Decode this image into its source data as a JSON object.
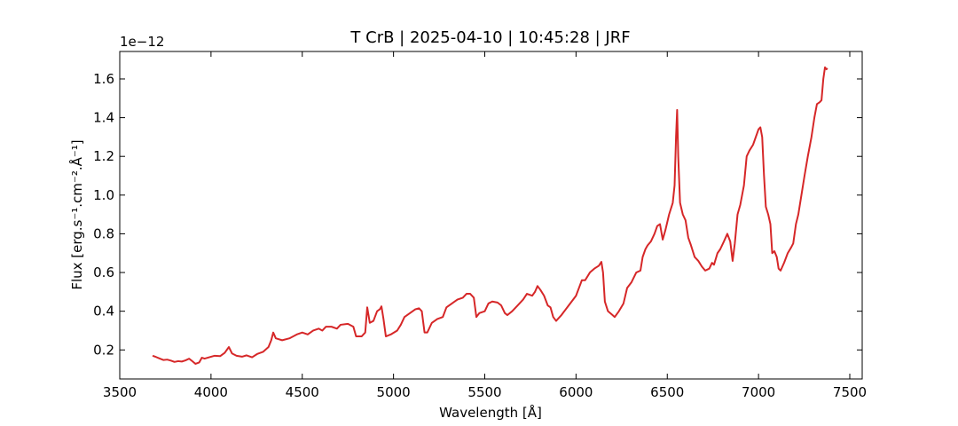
{
  "chart_data": {
    "type": "line",
    "title": "T CrB | 2025-04-10 | 10:45:28 | JRF",
    "xlabel": "Wavelength [Å]",
    "ylabel": "Flux [erg.s⁻¹.cm⁻².Å⁻¹]",
    "y_offset_label": "1e−12",
    "color": "#d62728",
    "xlim": [
      3500,
      7568
    ],
    "ylim": [
      0.05,
      1.742
    ],
    "xticks": [
      3500,
      4000,
      4500,
      5000,
      5500,
      6000,
      6500,
      7000,
      7500
    ],
    "yticks": [
      0.2,
      0.4,
      0.6,
      0.8,
      {
        "value": 1,
        "label": "1.0"
      },
      1.2,
      1.4,
      1.6
    ],
    "x": [
      3680,
      3700,
      3720,
      3740,
      3760,
      3780,
      3800,
      3820,
      3840,
      3860,
      3880,
      3900,
      3915,
      3935,
      3950,
      3965,
      3990,
      4020,
      4050,
      4075,
      4098,
      4115,
      4140,
      4170,
      4195,
      4225,
      4255,
      4285,
      4315,
      4330,
      4341,
      4355,
      4390,
      4430,
      4470,
      4500,
      4530,
      4560,
      4590,
      4610,
      4630,
      4660,
      4690,
      4710,
      4750,
      4780,
      4795,
      4825,
      4845,
      4856,
      4870,
      4890,
      4910,
      4925,
      4934,
      4945,
      4958,
      4985,
      5020,
      5040,
      5060,
      5090,
      5120,
      5140,
      5155,
      5170,
      5185,
      5210,
      5240,
      5270,
      5290,
      5320,
      5350,
      5380,
      5400,
      5420,
      5440,
      5454,
      5470,
      5500,
      5520,
      5541,
      5570,
      5590,
      5610,
      5624,
      5650,
      5680,
      5710,
      5731,
      5760,
      5775,
      5789,
      5805,
      5825,
      5845,
      5860,
      5875,
      5891,
      5920,
      5960,
      6000,
      6020,
      6032,
      6050,
      6076,
      6100,
      6125,
      6139,
      6148,
      6158,
      6175,
      6200,
      6212,
      6235,
      6260,
      6280,
      6304,
      6330,
      6353,
      6365,
      6380,
      6392,
      6410,
      6430,
      6445,
      6460,
      6475,
      6490,
      6510,
      6530,
      6540,
      6548,
      6554,
      6560,
      6570,
      6585,
      6600,
      6615,
      6630,
      6650,
      6670,
      6690,
      6708,
      6730,
      6745,
      6756,
      6775,
      6790,
      6810,
      6829,
      6845,
      6858,
      6870,
      6885,
      6900,
      6920,
      6935,
      6950,
      6970,
      6985,
      7000,
      7010,
      7020,
      7030,
      7040,
      7053,
      7065,
      7075,
      7087,
      7100,
      7110,
      7121,
      7140,
      7160,
      7179,
      7190,
      7205,
      7218,
      7235,
      7252,
      7270,
      7290,
      7306,
      7320,
      7335,
      7345,
      7355,
      7364,
      7372,
      7378
    ],
    "values": [
      0.17,
      0.163,
      0.155,
      0.148,
      0.15,
      0.145,
      0.138,
      0.142,
      0.14,
      0.146,
      0.155,
      0.14,
      0.128,
      0.135,
      0.16,
      0.155,
      0.162,
      0.17,
      0.168,
      0.185,
      0.215,
      0.182,
      0.17,
      0.165,
      0.172,
      0.162,
      0.18,
      0.19,
      0.215,
      0.25,
      0.29,
      0.26,
      0.25,
      0.26,
      0.28,
      0.29,
      0.28,
      0.3,
      0.31,
      0.3,
      0.32,
      0.32,
      0.31,
      0.33,
      0.335,
      0.32,
      0.27,
      0.27,
      0.29,
      0.42,
      0.34,
      0.35,
      0.4,
      0.41,
      0.425,
      0.36,
      0.27,
      0.28,
      0.3,
      0.33,
      0.37,
      0.39,
      0.41,
      0.415,
      0.4,
      0.29,
      0.29,
      0.34,
      0.36,
      0.37,
      0.42,
      0.44,
      0.46,
      0.47,
      0.49,
      0.49,
      0.47,
      0.37,
      0.39,
      0.4,
      0.44,
      0.45,
      0.445,
      0.43,
      0.39,
      0.38,
      0.4,
      0.43,
      0.46,
      0.49,
      0.48,
      0.5,
      0.53,
      0.51,
      0.48,
      0.43,
      0.42,
      0.37,
      0.35,
      0.38,
      0.43,
      0.48,
      0.53,
      0.56,
      0.56,
      0.6,
      0.62,
      0.635,
      0.655,
      0.6,
      0.45,
      0.4,
      0.38,
      0.37,
      0.4,
      0.44,
      0.52,
      0.55,
      0.6,
      0.61,
      0.68,
      0.72,
      0.74,
      0.76,
      0.8,
      0.84,
      0.85,
      0.77,
      0.82,
      0.9,
      0.96,
      1.05,
      1.3,
      1.44,
      1.2,
      0.96,
      0.9,
      0.87,
      0.78,
      0.74,
      0.68,
      0.66,
      0.63,
      0.61,
      0.62,
      0.65,
      0.64,
      0.7,
      0.72,
      0.76,
      0.8,
      0.76,
      0.66,
      0.75,
      0.9,
      0.95,
      1.05,
      1.2,
      1.23,
      1.26,
      1.3,
      1.34,
      1.35,
      1.3,
      1.1,
      0.94,
      0.9,
      0.85,
      0.7,
      0.71,
      0.68,
      0.62,
      0.61,
      0.65,
      0.7,
      0.73,
      0.75,
      0.85,
      0.9,
      1.0,
      1.1,
      1.2,
      1.3,
      1.4,
      1.47,
      1.48,
      1.49,
      1.6,
      1.66,
      1.65,
      1.655
    ]
  }
}
